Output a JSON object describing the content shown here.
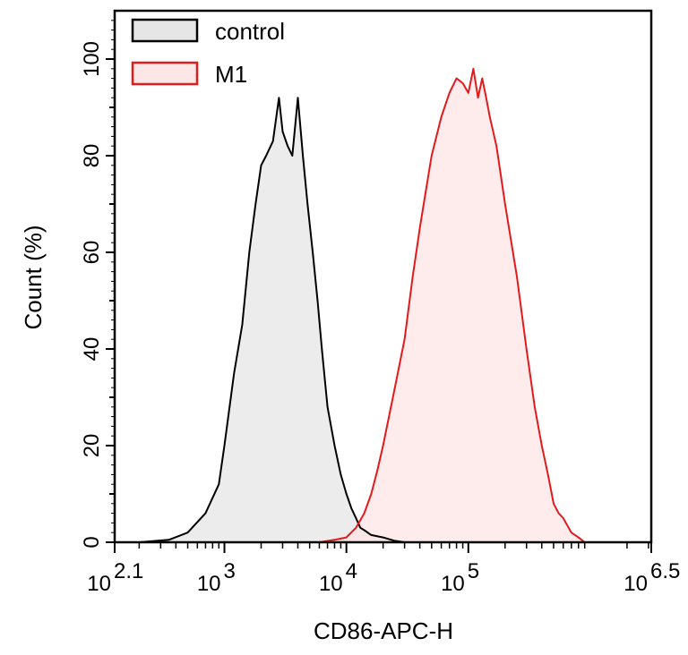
{
  "chart_data": {
    "type": "area",
    "xlabel": "CD86-APC-H",
    "ylabel": "Count  (%)",
    "x_scale": "log10",
    "xlim": [
      125.89,
      3162278
    ],
    "ylim": [
      0,
      110
    ],
    "x_ticks": [
      {
        "base": "10",
        "exp": "2.1",
        "value": 125.89
      },
      {
        "base": "10",
        "exp": "3",
        "value": 1000
      },
      {
        "base": "10",
        "exp": "4",
        "value": 10000
      },
      {
        "base": "10",
        "exp": "5",
        "value": 100000
      },
      {
        "base": "10",
        "exp": "6.5",
        "value": 3162278
      }
    ],
    "y_ticks": [
      "0",
      "20",
      "40",
      "60",
      "80",
      "100"
    ],
    "legend_position": "top-left",
    "grid": false,
    "series": [
      {
        "name": "control",
        "stroke": "#000000",
        "fill": "#e6e6e6",
        "x": [
          200,
          350,
          500,
          700,
          900,
          1000,
          1200,
          1400,
          1600,
          1800,
          2000,
          2200,
          2500,
          2800,
          3000,
          3300,
          3600,
          4000,
          4400,
          4800,
          5300,
          5800,
          6300,
          7000,
          8000,
          9000,
          10000,
          11000,
          12000,
          13000,
          14000,
          16000,
          20000,
          25000,
          30000
        ],
        "y": [
          0,
          0.5,
          2,
          6,
          12,
          20,
          35,
          45,
          60,
          70,
          78,
          80,
          83,
          92,
          85,
          82,
          80,
          92,
          80,
          70,
          60,
          50,
          40,
          28,
          20,
          14,
          10,
          7,
          5,
          3,
          2.5,
          1.5,
          1,
          0.3,
          0
        ]
      },
      {
        "name": "M1",
        "stroke": "#e31a1c",
        "fill": "#fde6e6",
        "x": [
          6000,
          8000,
          10000,
          12000,
          14000,
          16000,
          18000,
          20000,
          25000,
          30000,
          35000,
          40000,
          45000,
          50000,
          60000,
          70000,
          80000,
          90000,
          100000,
          110000,
          120000,
          130000,
          140000,
          150000,
          170000,
          200000,
          250000,
          300000,
          350000,
          400000,
          450000,
          500000,
          550000,
          600000,
          700000,
          800000,
          900000
        ],
        "y": [
          0,
          0.5,
          1,
          3,
          6,
          10,
          15,
          20,
          32,
          42,
          55,
          65,
          73,
          80,
          88,
          93,
          96,
          95,
          93,
          98,
          92,
          96,
          92,
          88,
          82,
          70,
          55,
          40,
          28,
          20,
          14,
          8,
          6,
          5,
          2,
          1,
          0
        ]
      }
    ]
  }
}
